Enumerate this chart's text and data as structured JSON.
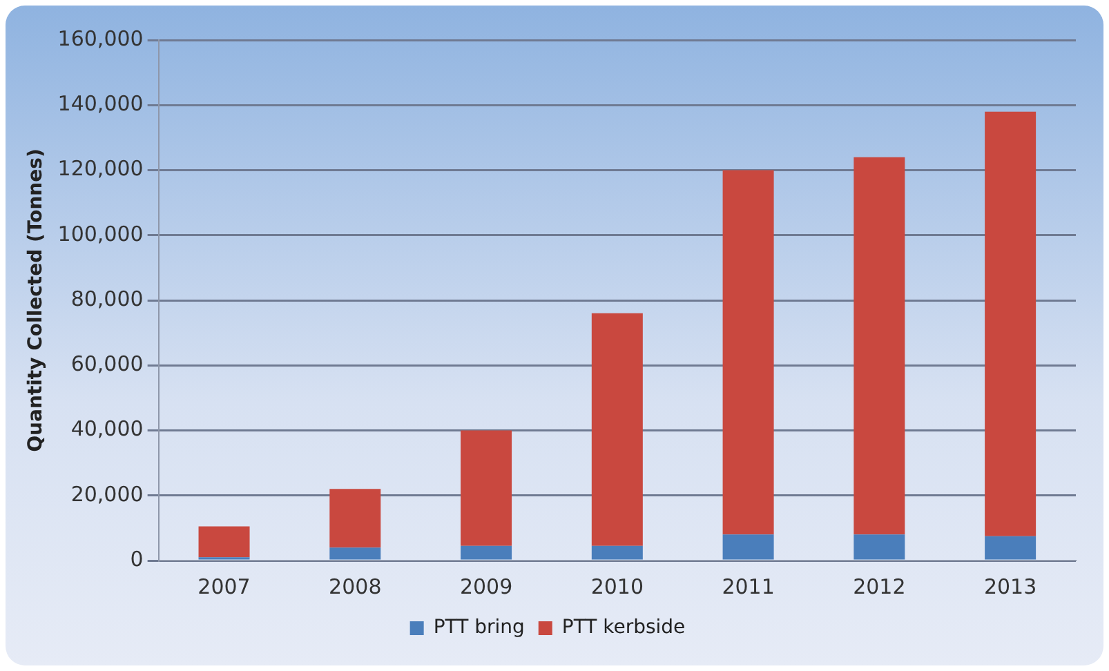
{
  "chart_data": {
    "type": "bar",
    "stacked": true,
    "ylabel": "Quantity Collected (Tonnes)",
    "categories": [
      "2007",
      "2008",
      "2009",
      "2010",
      "2011",
      "2012",
      "2013"
    ],
    "series": [
      {
        "name": "PTT bring",
        "color": "#4a7ebb",
        "values": [
          1000,
          4000,
          4500,
          4500,
          8000,
          8000,
          7500
        ]
      },
      {
        "name": "PTT kerbside",
        "color": "#c9483f",
        "values": [
          9500,
          18000,
          35500,
          71500,
          112000,
          116000,
          130500
        ]
      }
    ],
    "ylim": [
      0,
      160000
    ],
    "yticks": [
      0,
      {
        "value": 20000,
        "label": "20,000"
      },
      {
        "value": 40000,
        "label": "40,000"
      },
      {
        "value": 60000,
        "label": "60,000"
      },
      {
        "value": 80000,
        "label": "80,000"
      },
      {
        "value": 100000,
        "label": "100,000"
      },
      {
        "value": 120000,
        "label": "120,000"
      },
      {
        "value": 140000,
        "label": "140,000"
      },
      {
        "value": 160000,
        "label": "160,000"
      }
    ],
    "grid": "y",
    "legend": "bottom"
  }
}
